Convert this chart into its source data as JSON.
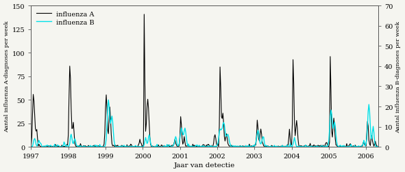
{
  "title": "",
  "xlabel": "Jaar van detectie",
  "ylabel_left": "Aantal influenza A-diagnoses per week",
  "ylabel_right": "Aantal influenza B-diagnoses per week",
  "ylim_left": [
    0,
    150
  ],
  "ylim_right": [
    0,
    70
  ],
  "yticks_left": [
    0,
    25,
    50,
    75,
    100,
    125,
    150
  ],
  "yticks_right": [
    0,
    10,
    20,
    30,
    40,
    50,
    60,
    70
  ],
  "color_A": "#000000",
  "color_B": "#00e0e8",
  "legend_labels": [
    "influenza A",
    "influenza B"
  ],
  "linewidth_A": 0.8,
  "linewidth_B": 1.0,
  "figsize": [
    5.91,
    2.53
  ],
  "dpi": 100,
  "xtick_years": [
    1997,
    1998,
    1999,
    2000,
    2001,
    2002,
    2003,
    2004,
    2005,
    2006
  ],
  "bg_color": "#f5f5f0",
  "font_family": "DejaVu Serif"
}
